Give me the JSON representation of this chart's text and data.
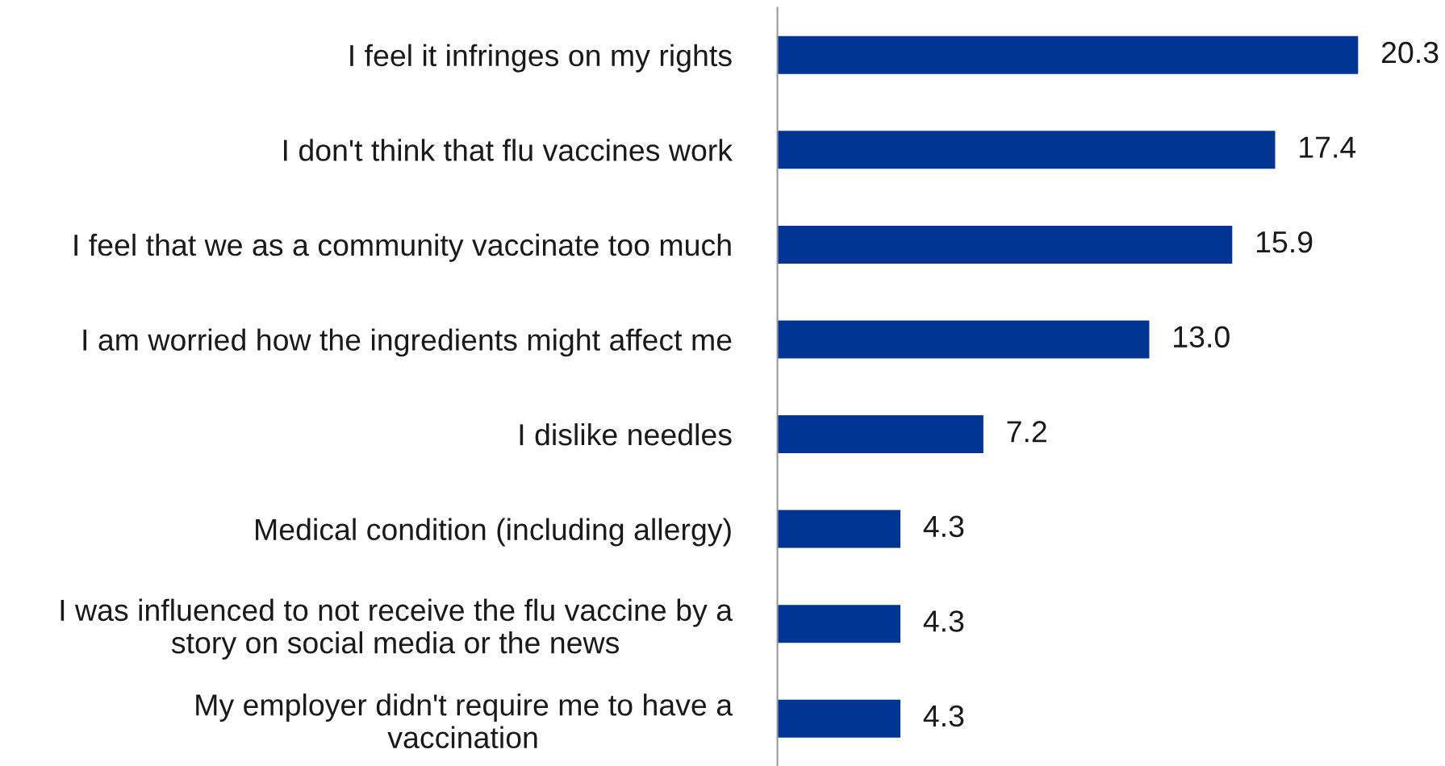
{
  "chart_data": {
    "type": "bar",
    "orientation": "horizontal",
    "categories": [
      "I feel it infringes on my rights",
      "I don't think that flu vaccines work",
      "I feel that we as a community vaccinate too much",
      "I am worried how the ingredients might affect me",
      "I dislike needles",
      "Medical condition (including allergy)",
      "I was influenced to not receive the flu vaccine by a\nstory on social media or the news",
      "My employer didn't require me to have a\nvaccination"
    ],
    "values": [
      20.3,
      17.4,
      15.9,
      13.0,
      7.2,
      4.3,
      4.3,
      4.3
    ],
    "value_labels": [
      "20.3",
      "17.4",
      "15.9",
      "13.0",
      "7.2",
      "4.3",
      "4.3",
      "4.3"
    ],
    "color": "#003594",
    "grid": false,
    "legend": false
  }
}
